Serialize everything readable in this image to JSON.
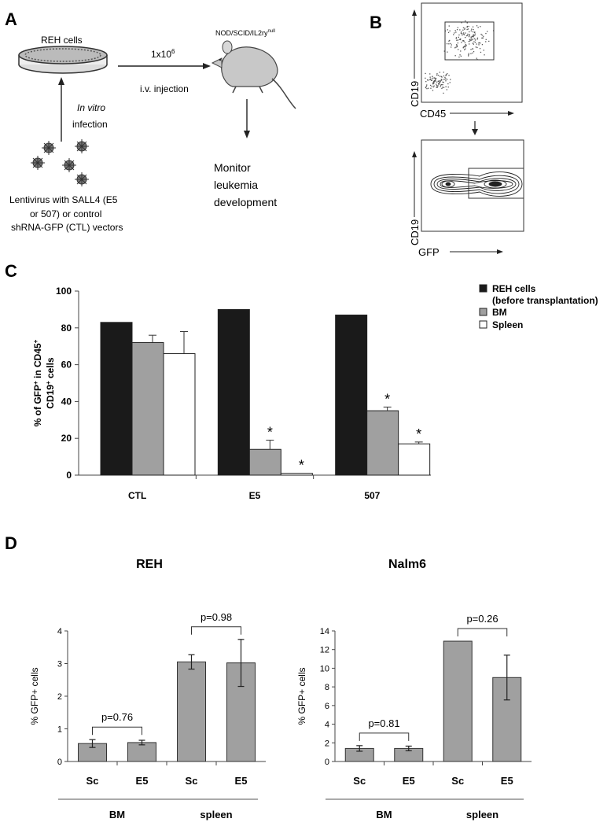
{
  "panels": {
    "a": {
      "letter": "A",
      "reh_cells": "REH cells",
      "dose": "1x10",
      "dose_exp": "6",
      "mouse_strain": "NOD/SCID/IL2ry",
      "mouse_strain_sup": "null",
      "injection": "i.v. injection",
      "in_vitro": "In vitro",
      "infection": "infection",
      "lenti_line1": "Lentivirus with SALL4 (E5",
      "lenti_line2": "or 507) or control",
      "lenti_line3": "shRNA-GFP (CTL) vectors",
      "monitor_line1": "Monitor",
      "monitor_line2": "leukemia",
      "monitor_line3": "development"
    },
    "b": {
      "letter": "B",
      "top_y": "CD19",
      "top_x": "CD45",
      "bottom_y": "CD19",
      "bottom_x": "GFP"
    },
    "c": {
      "letter": "C"
    },
    "d": {
      "letter": "D"
    }
  },
  "chart_data": [
    {
      "type": "bar",
      "panel": "C",
      "ylabel": "% of GFP+ in CD45+ CD19+ cells",
      "ylabel_parts": [
        "% of GFP",
        "+",
        " in CD45",
        "+"
      ],
      "ylabel_line2": [
        "CD19",
        "+",
        " cells"
      ],
      "ylim": [
        0,
        100
      ],
      "yticks": [
        0,
        20,
        40,
        60,
        80,
        100
      ],
      "categories": [
        "CTL",
        "E5",
        "507"
      ],
      "series": [
        {
          "name": "REH cells (before transplantation)",
          "name_line1": "REH cells",
          "name_line2": "(before transplantation)",
          "color": "#1a1a1a",
          "values": [
            83,
            90,
            87
          ],
          "errors": [
            0,
            0,
            0
          ]
        },
        {
          "name": "BM",
          "color": "#a0a0a0",
          "values": [
            72,
            14,
            35
          ],
          "errors": [
            4,
            5,
            2
          ]
        },
        {
          "name": "Spleen",
          "color": "#ffffff",
          "values": [
            66,
            1,
            17
          ],
          "errors": [
            12,
            0,
            1
          ]
        }
      ],
      "annotations": [
        {
          "category": "E5",
          "series": "BM",
          "text": "*"
        },
        {
          "category": "E5",
          "series": "Spleen",
          "text": "*"
        },
        {
          "category": "507",
          "series": "BM",
          "text": "*"
        },
        {
          "category": "507",
          "series": "Spleen",
          "text": "*"
        }
      ],
      "legend": "top-right"
    },
    {
      "type": "bar",
      "panel": "D",
      "title": "REH",
      "ylabel": "% GFP+ cells",
      "ylim": [
        0,
        4
      ],
      "yticks": [
        0,
        1,
        2,
        3,
        4
      ],
      "categories": [
        "Sc",
        "E5",
        "Sc",
        "E5"
      ],
      "groups": [
        "BM",
        "spleen"
      ],
      "values": [
        0.55,
        0.58,
        3.05,
        3.02
      ],
      "errors": [
        0.12,
        0.07,
        0.22,
        0.72
      ],
      "color": "#a0a0a0",
      "pvalues": [
        "p=0.76",
        "p=0.98"
      ]
    },
    {
      "type": "bar",
      "panel": "D",
      "title": "Nalm6",
      "ylabel": "% GFP+ cells",
      "ylim": [
        0,
        14
      ],
      "yticks": [
        0,
        2,
        4,
        6,
        8,
        10,
        12,
        14
      ],
      "categories": [
        "Sc",
        "E5",
        "Sc",
        "E5"
      ],
      "groups": [
        "BM",
        "spleen"
      ],
      "values": [
        1.4,
        1.4,
        12.9,
        9.0
      ],
      "errors": [
        0.3,
        0.25,
        0,
        2.4
      ],
      "color": "#a0a0a0",
      "pvalues": [
        "p=0.81",
        "p=0.26"
      ]
    }
  ]
}
